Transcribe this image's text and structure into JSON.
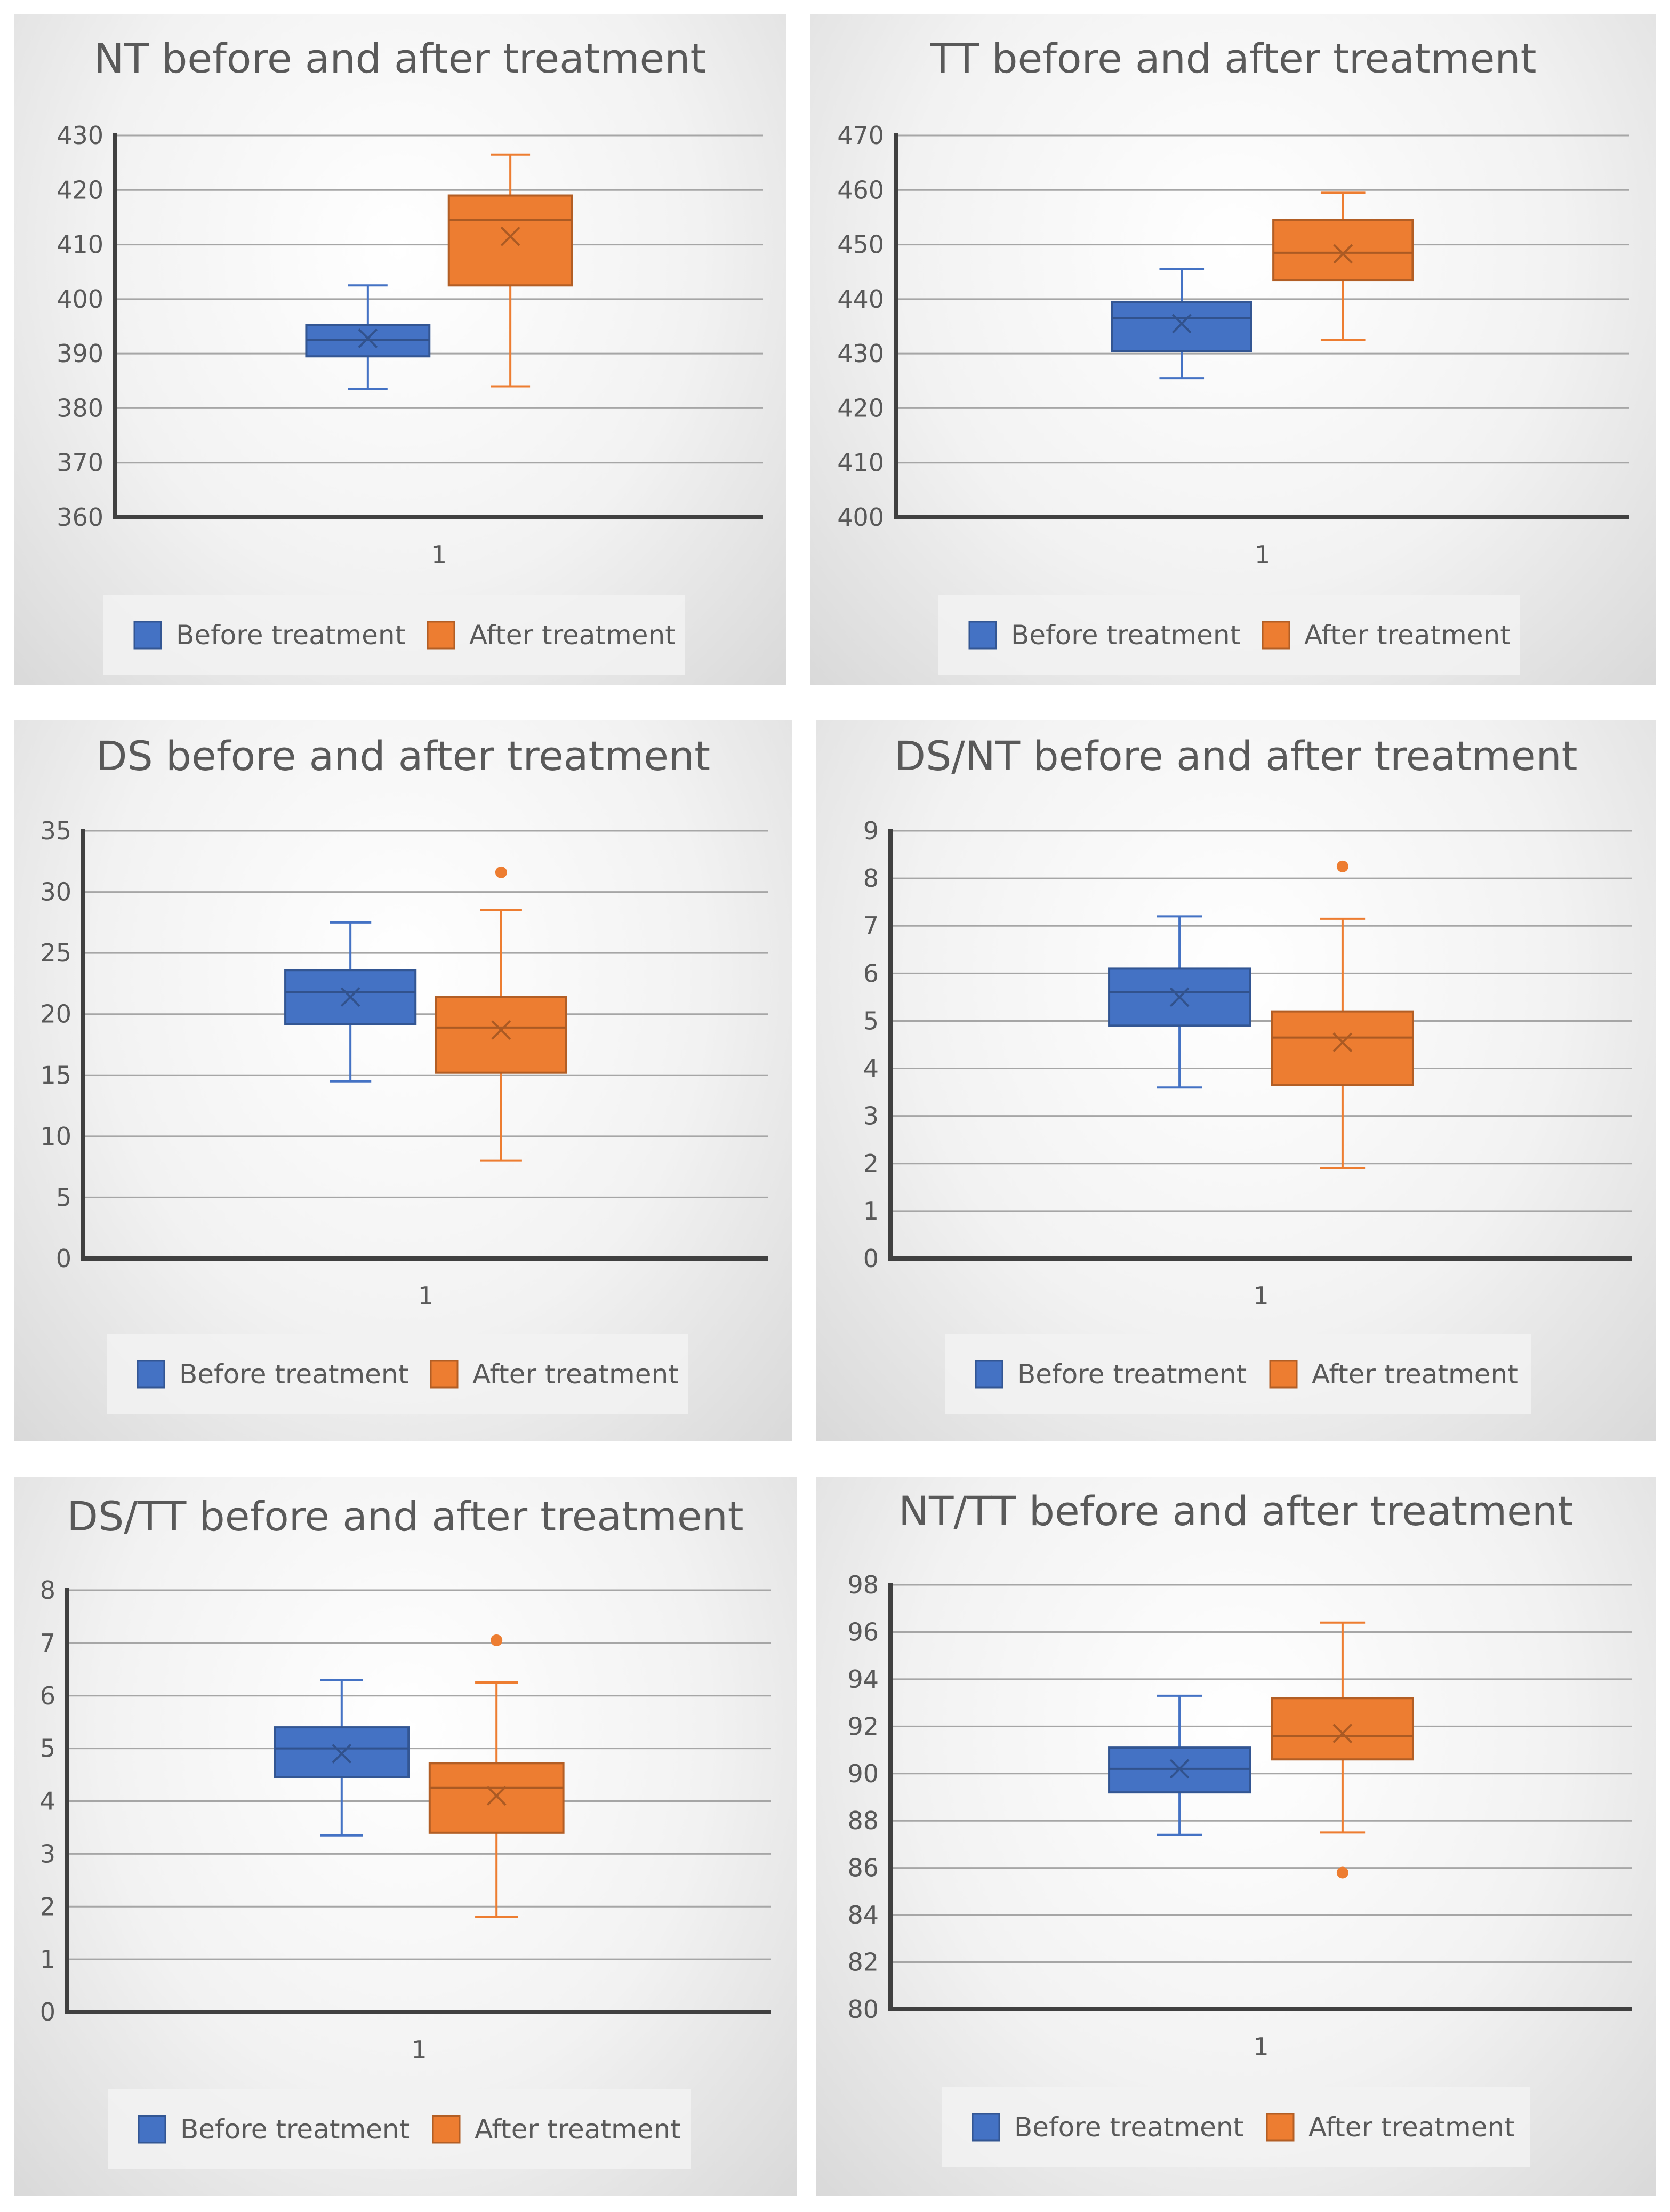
{
  "chart_data": [
    {
      "type": "box",
      "title": "NT before and after treatment",
      "categories": [
        "1"
      ],
      "ylim": [
        360,
        430
      ],
      "yticks": [
        360,
        370,
        380,
        390,
        400,
        410,
        420,
        430
      ],
      "legend_position": "bottom",
      "grid": true,
      "series": [
        {
          "name": "Before treatment",
          "color": "#4472C4",
          "min": 383.5,
          "q1": 389.5,
          "median": 392.5,
          "q3": 395.2,
          "max": 402.5,
          "mean": 392.8,
          "outliers": []
        },
        {
          "name": "After treatment",
          "color": "#ED7D31",
          "min": 384,
          "q1": 402.5,
          "median": 414.5,
          "q3": 419,
          "max": 426.5,
          "mean": 411.5,
          "outliers": []
        }
      ]
    },
    {
      "type": "box",
      "title": "TT before and after treatment",
      "categories": [
        "1"
      ],
      "ylim": [
        400,
        470
      ],
      "yticks": [
        400,
        410,
        420,
        430,
        440,
        450,
        460,
        470
      ],
      "legend_position": "bottom",
      "grid": true,
      "series": [
        {
          "name": "Before treatment",
          "color": "#4472C4",
          "min": 425.5,
          "q1": 430.5,
          "median": 436.5,
          "q3": 439.5,
          "max": 445.5,
          "mean": 435.5,
          "outliers": []
        },
        {
          "name": "After treatment",
          "color": "#ED7D31",
          "min": 432.5,
          "q1": 443.5,
          "median": 448.5,
          "q3": 454.5,
          "max": 459.5,
          "mean": 448.3,
          "outliers": []
        }
      ]
    },
    {
      "type": "box",
      "title": "DS before and after treatment",
      "categories": [
        "1"
      ],
      "ylim": [
        0,
        35
      ],
      "yticks": [
        0,
        5,
        10,
        15,
        20,
        25,
        30,
        35
      ],
      "legend_position": "bottom",
      "grid": true,
      "series": [
        {
          "name": "Before treatment",
          "color": "#4472C4",
          "min": 14.5,
          "q1": 19.2,
          "median": 21.8,
          "q3": 23.6,
          "max": 27.5,
          "mean": 21.4,
          "outliers": []
        },
        {
          "name": "After treatment",
          "color": "#ED7D31",
          "min": 8,
          "q1": 15.2,
          "median": 18.9,
          "q3": 21.4,
          "max": 28.5,
          "mean": 18.7,
          "outliers": [
            31.6
          ]
        }
      ]
    },
    {
      "type": "box",
      "title": "DS/NT before and after treatment",
      "categories": [
        "1"
      ],
      "ylim": [
        0,
        9
      ],
      "yticks": [
        0,
        1,
        2,
        3,
        4,
        5,
        6,
        7,
        8,
        9
      ],
      "legend_position": "bottom",
      "grid": true,
      "series": [
        {
          "name": "Before treatment",
          "color": "#4472C4",
          "min": 3.6,
          "q1": 4.9,
          "median": 5.6,
          "q3": 6.1,
          "max": 7.2,
          "mean": 5.5,
          "outliers": []
        },
        {
          "name": "After treatment",
          "color": "#ED7D31",
          "min": 1.9,
          "q1": 3.65,
          "median": 4.65,
          "q3": 5.2,
          "max": 7.15,
          "mean": 4.55,
          "outliers": [
            8.25
          ]
        }
      ]
    },
    {
      "type": "box",
      "title": "DS/TT before and after treatment",
      "categories": [
        "1"
      ],
      "ylim": [
        0,
        8
      ],
      "yticks": [
        0,
        1,
        2,
        3,
        4,
        5,
        6,
        7,
        8
      ],
      "legend_position": "bottom",
      "grid": true,
      "series": [
        {
          "name": "Before treatment",
          "color": "#4472C4",
          "min": 3.35,
          "q1": 4.45,
          "median": 5.0,
          "q3": 5.4,
          "max": 6.3,
          "mean": 4.9,
          "outliers": []
        },
        {
          "name": "After treatment",
          "color": "#ED7D31",
          "min": 1.8,
          "q1": 3.4,
          "median": 4.25,
          "q3": 4.72,
          "max": 6.25,
          "mean": 4.1,
          "outliers": [
            7.05
          ]
        }
      ]
    },
    {
      "type": "box",
      "title": "NT/TT before and after treatment",
      "categories": [
        "1"
      ],
      "ylim": [
        80,
        98
      ],
      "yticks": [
        80,
        82,
        84,
        86,
        88,
        90,
        92,
        94,
        96,
        98
      ],
      "legend_position": "bottom",
      "grid": true,
      "series": [
        {
          "name": "Before treatment",
          "color": "#4472C4",
          "min": 87.4,
          "q1": 89.2,
          "median": 90.2,
          "q3": 91.1,
          "max": 93.3,
          "mean": 90.2,
          "outliers": []
        },
        {
          "name": "After treatment",
          "color": "#ED7D31",
          "min": 87.5,
          "q1": 90.6,
          "median": 91.6,
          "q3": 93.2,
          "max": 96.4,
          "mean": 91.7,
          "outliers": [
            85.8
          ]
        }
      ]
    }
  ]
}
